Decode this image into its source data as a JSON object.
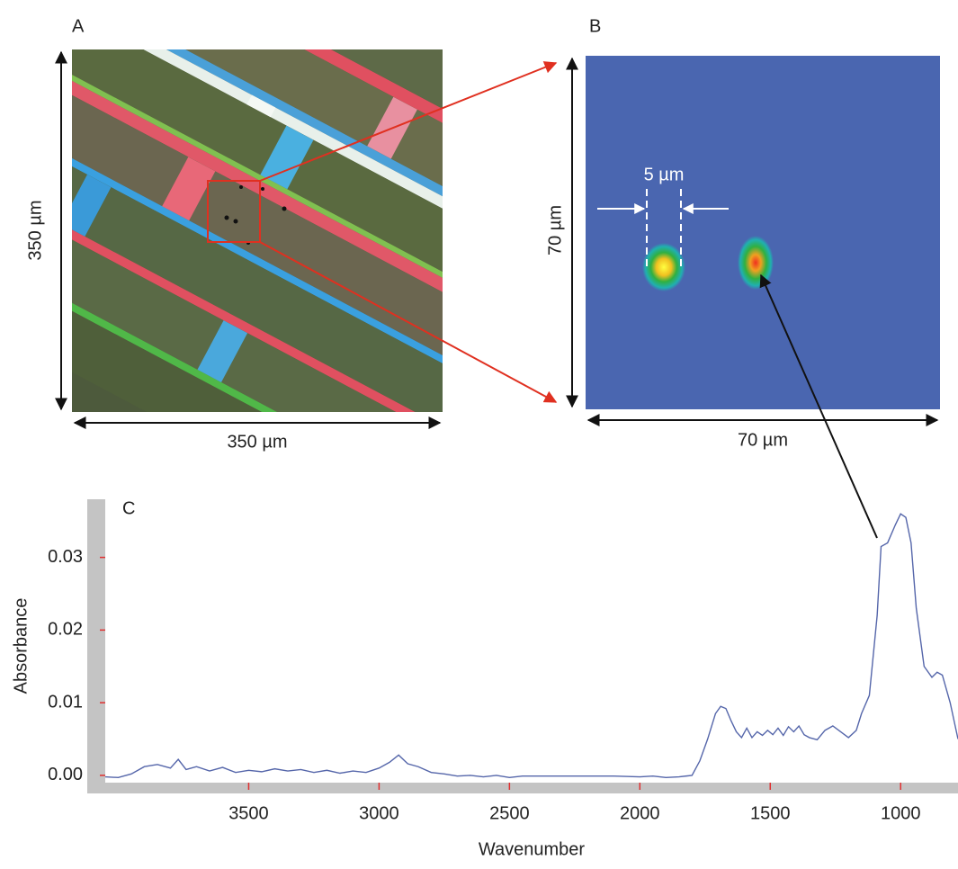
{
  "panels": {
    "a": {
      "label": "A",
      "width_label": "350 µm",
      "height_label": "350 µm"
    },
    "b": {
      "label": "B",
      "width_label": "70 µm",
      "height_label": "70 µm",
      "spacing_label": "5 µm"
    }
  },
  "chart_data": {
    "type": "line",
    "label": "C",
    "xlabel": "Wavenumber",
    "ylabel": "Absorbance",
    "x": [
      4050,
      4000,
      3950,
      3900,
      3850,
      3800,
      3770,
      3740,
      3700,
      3650,
      3600,
      3550,
      3500,
      3450,
      3400,
      3350,
      3300,
      3250,
      3200,
      3150,
      3100,
      3050,
      3000,
      2960,
      2925,
      2890,
      2850,
      2800,
      2750,
      2700,
      2650,
      2600,
      2550,
      2500,
      2450,
      2400,
      2300,
      2200,
      2100,
      2000,
      1950,
      1900,
      1850,
      1800,
      1770,
      1740,
      1710,
      1690,
      1670,
      1650,
      1630,
      1610,
      1590,
      1570,
      1550,
      1530,
      1510,
      1490,
      1470,
      1450,
      1430,
      1410,
      1390,
      1370,
      1350,
      1320,
      1290,
      1260,
      1230,
      1200,
      1170,
      1150,
      1120,
      1090,
      1075,
      1050,
      1020,
      1000,
      980,
      960,
      940,
      910,
      880,
      860,
      840,
      810,
      780
    ],
    "values": [
      -0.0002,
      -0.0003,
      0.0002,
      0.0012,
      0.0015,
      0.001,
      0.0022,
      0.0008,
      0.0012,
      0.0006,
      0.0011,
      0.0004,
      0.0007,
      0.0005,
      0.0009,
      0.0006,
      0.0008,
      0.0004,
      0.0007,
      0.0003,
      0.0006,
      0.0004,
      0.001,
      0.0018,
      0.0028,
      0.0016,
      0.0012,
      0.0004,
      0.0002,
      -0.0001,
      0.0,
      -0.0002,
      0.0,
      -0.0003,
      -0.0001,
      -0.0001,
      -0.0001,
      -0.0001,
      -0.0001,
      -0.0002,
      -0.0001,
      -0.0003,
      -0.0002,
      0.0,
      0.002,
      0.005,
      0.0085,
      0.0095,
      0.0092,
      0.0075,
      0.006,
      0.0052,
      0.0065,
      0.0052,
      0.006,
      0.0055,
      0.0062,
      0.0056,
      0.0065,
      0.0055,
      0.0067,
      0.006,
      0.0068,
      0.0056,
      0.0052,
      0.0049,
      0.0062,
      0.0068,
      0.006,
      0.0052,
      0.0062,
      0.0085,
      0.011,
      0.022,
      0.0315,
      0.032,
      0.0345,
      0.036,
      0.0355,
      0.032,
      0.023,
      0.015,
      0.0135,
      0.0142,
      0.0138,
      0.01,
      0.005
    ],
    "color": "#5566aa",
    "xlim": [
      4050,
      780
    ],
    "ylim": [
      -0.001,
      0.038
    ],
    "xticks": [
      3500,
      3000,
      2500,
      2000,
      1500,
      1000
    ],
    "yticks": [
      {
        "value": 0,
        "label": "0.00"
      },
      0.01,
      0.02,
      0.03
    ]
  }
}
